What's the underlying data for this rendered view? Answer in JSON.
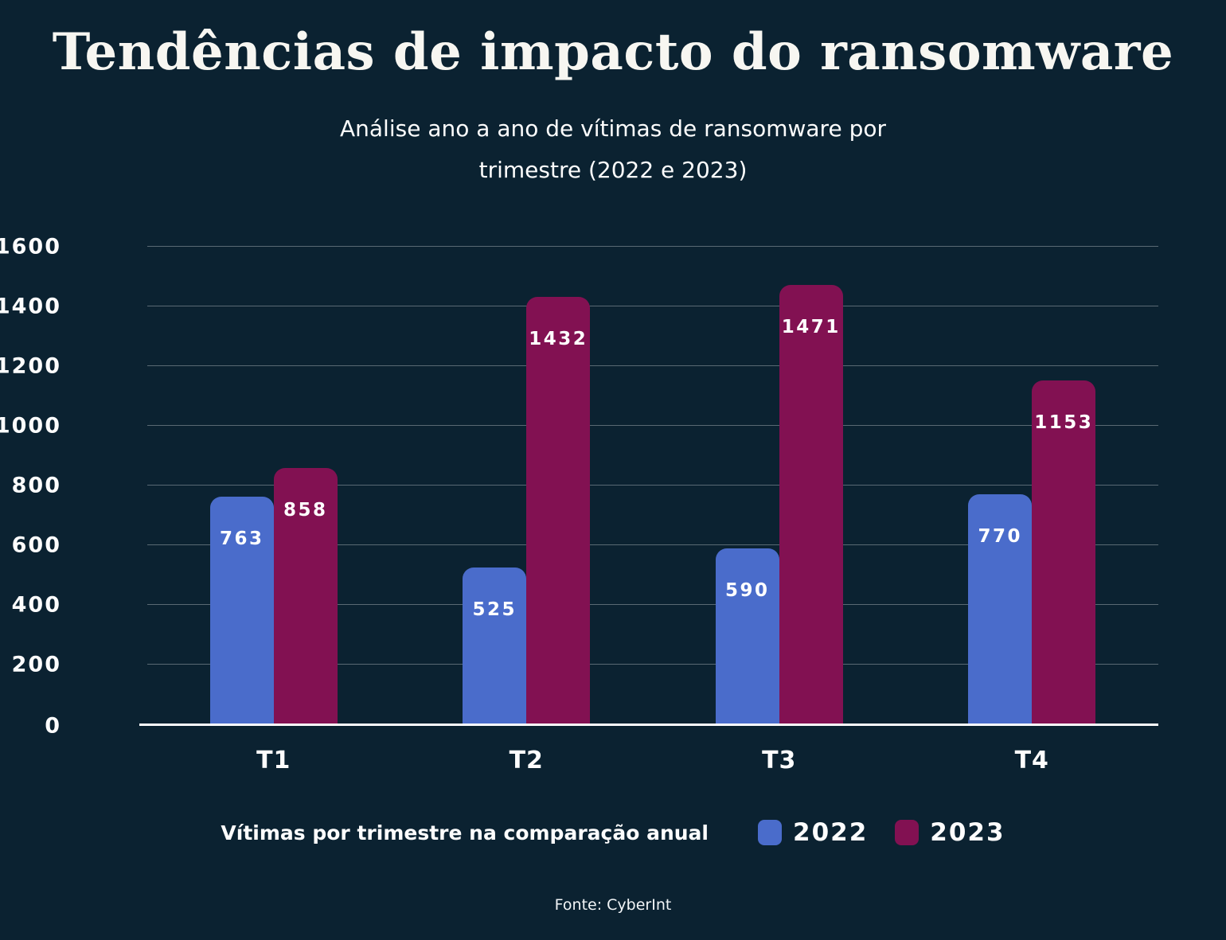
{
  "page": {
    "title": "Tendências de impacto do ransomware",
    "subtitle_line1": "Análise ano a ano de vítimas de ransomware por",
    "subtitle_line2": "trimestre (2022 e 2023)",
    "footer": "Fonte: CyberInt"
  },
  "colors": {
    "background": "#0B2231",
    "text": "#FFFFFF",
    "gridline": "rgba(255,255,255,0.32)",
    "axis": "#FFFFFF",
    "series_2022": "#4A6CCB",
    "series_2023": "#821152"
  },
  "legend": {
    "label": "Vítimas por trimestre na comparação anual",
    "items": [
      {
        "label": "2022",
        "color": "#4A6CCB"
      },
      {
        "label": "2023",
        "color": "#821152"
      }
    ]
  },
  "chart_data": {
    "type": "bar",
    "title": "Tendências de impacto do ransomware",
    "subtitle": "Análise ano a ano de vítimas de ransomware por trimestre (2022 e 2023)",
    "categories": [
      "T1",
      "T2",
      "T3",
      "T4"
    ],
    "series": [
      {
        "name": "2022",
        "color": "#4A6CCB",
        "values": [
          763,
          525,
          590,
          770
        ]
      },
      {
        "name": "2023",
        "color": "#821152",
        "values": [
          858,
          1432,
          1471,
          1153
        ]
      }
    ],
    "xlabel": "",
    "ylabel": "",
    "ylim": [
      0,
      1600
    ],
    "yticks": [
      0,
      200,
      400,
      600,
      800,
      1000,
      1200,
      1400,
      1600
    ],
    "grid": true,
    "bar_value_labels": true,
    "legend_position": "bottom",
    "caption": "Vítimas por trimestre na comparação anual",
    "source": "Fonte: CyberInt"
  }
}
